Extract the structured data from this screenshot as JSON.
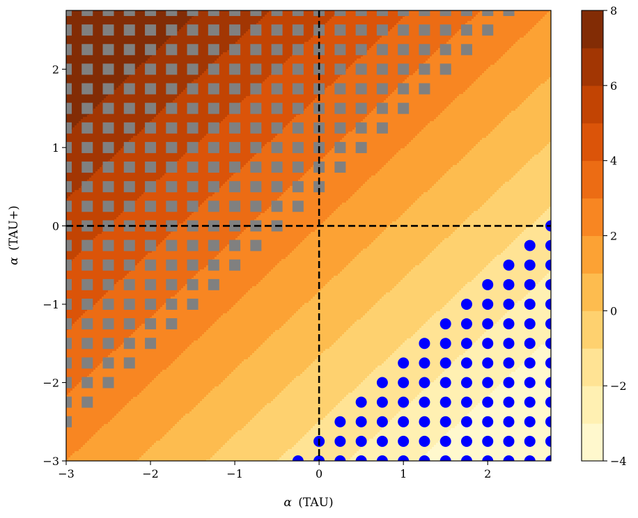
{
  "chart_data": {
    "type": "contourf",
    "xlabel_sym": "α",
    "xlabel_name": "(TAU)",
    "ylabel_sym": "α",
    "ylabel_name": "(TAU+)",
    "title": "",
    "xlim": [
      -3,
      2.75
    ],
    "ylim": [
      -3,
      2.75
    ],
    "x_ticks": [
      -3,
      -2,
      -1,
      0,
      1,
      2
    ],
    "y_ticks": [
      -3,
      -2,
      -1,
      0,
      1,
      2
    ],
    "x_tick_labels": [
      "−3",
      "−2",
      "−1",
      "0",
      "1",
      "2"
    ],
    "y_tick_labels": [
      "−3",
      "−2",
      "−1",
      "0",
      "1",
      "2"
    ],
    "reference_lines": {
      "x": 0,
      "y": 0,
      "style": "dashed",
      "color": "#000000"
    },
    "contour_field": {
      "description": "filled contours; level rises toward top-left, falls toward bottom-right",
      "approx_model": "z = 2.0 + 1.2*(y - x)",
      "levels": [
        -4,
        -3,
        -2,
        -1,
        0,
        1,
        2,
        3,
        4,
        5,
        6,
        7,
        8
      ]
    },
    "colorbar": {
      "min": -4,
      "max": 8,
      "ticks": [
        -4,
        -2,
        0,
        2,
        4,
        6,
        8
      ],
      "tick_labels": [
        "−4",
        "−2",
        "0",
        "2",
        "4",
        "6",
        "8"
      ],
      "colors": [
        "#fff8cd",
        "#fff0b2",
        "#ffe394",
        "#fed16f",
        "#fdbc4f",
        "#fca234",
        "#f88622",
        "#ec6c14",
        "#db5409",
        "#c24403",
        "#a23603",
        "#822c05"
      ]
    },
    "marker_grid": {
      "x_start": -3,
      "x_step": 0.25,
      "x_end": 2.75,
      "y_start": -3,
      "y_step": 0.25,
      "y_end": 2.75
    },
    "series": [
      {
        "marker": "square",
        "color": "#808080",
        "region": "upper-left (y - x ≥ 0.5, with y ≤ 2.0 where x ≥ 2.5)"
      },
      {
        "marker": "circle",
        "color": "#0000ff",
        "region": "lower-right (x - y ≥ 2.75)"
      }
    ]
  }
}
